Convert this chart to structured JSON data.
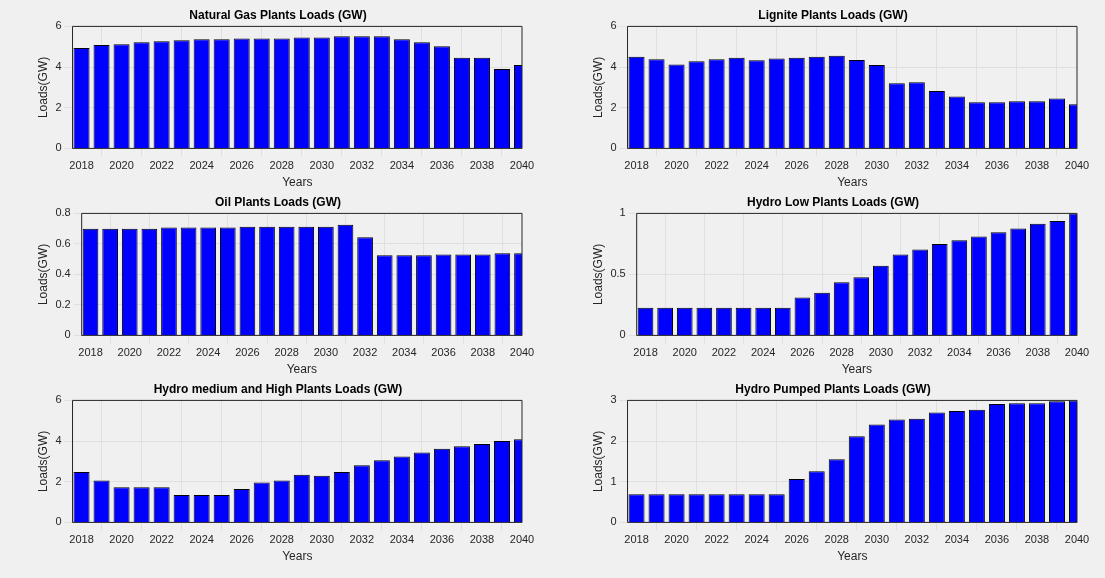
{
  "chart_data": [
    {
      "type": "bar",
      "title": "Natural Gas Plants Loads (GW)",
      "xlabel": "Years",
      "ylabel": "Loads(GW)",
      "color": "#0000ff",
      "grid": true,
      "x": [
        2018,
        2019,
        2020,
        2021,
        2022,
        2023,
        2024,
        2025,
        2026,
        2027,
        2028,
        2029,
        2030,
        2031,
        2032,
        2033,
        2034,
        2035,
        2036,
        2037,
        2038,
        2039,
        2040
      ],
      "values": [
        4.94,
        5.09,
        5.12,
        5.22,
        5.27,
        5.32,
        5.37,
        5.37,
        5.41,
        5.41,
        5.41,
        5.46,
        5.46,
        5.51,
        5.51,
        5.51,
        5.37,
        5.22,
        5.02,
        4.46,
        4.46,
        3.9,
        4.1
      ],
      "xlim": [
        2017.55,
        2040
      ],
      "xticks": [
        2018,
        2020,
        2022,
        2024,
        2026,
        2028,
        2030,
        2032,
        2034,
        2036,
        2038,
        2040
      ],
      "ylim": [
        0,
        6
      ],
      "yticks": [
        0,
        2,
        4,
        6
      ]
    },
    {
      "type": "bar",
      "title": "Lignite Plants Loads (GW)",
      "xlabel": "Years",
      "ylabel": "Loads(GW)",
      "color": "#0000ff",
      "grid": true,
      "x": [
        2018,
        2019,
        2020,
        2021,
        2022,
        2023,
        2024,
        2025,
        2026,
        2027,
        2028,
        2029,
        2030,
        2031,
        2032,
        2033,
        2034,
        2035,
        2036,
        2037,
        2038,
        2039,
        2040
      ],
      "values": [
        4.51,
        4.38,
        4.13,
        4.28,
        4.38,
        4.46,
        4.33,
        4.42,
        4.46,
        4.51,
        4.56,
        4.35,
        4.1,
        3.21,
        3.25,
        2.82,
        2.55,
        2.27,
        2.27,
        2.32,
        2.32,
        2.45,
        2.17
      ],
      "xlim": [
        2017.55,
        2040
      ],
      "xticks": [
        2018,
        2020,
        2022,
        2024,
        2026,
        2028,
        2030,
        2032,
        2034,
        2036,
        2038,
        2040
      ],
      "ylim": [
        0,
        6
      ],
      "yticks": [
        0,
        2,
        4,
        6
      ]
    },
    {
      "type": "bar",
      "title": "Oil Plants Loads (GW)",
      "xlabel": "Years",
      "ylabel": "Loads(GW)",
      "color": "#0000ff",
      "grid": true,
      "x": [
        2018,
        2019,
        2020,
        2021,
        2022,
        2023,
        2024,
        2025,
        2026,
        2027,
        2028,
        2029,
        2030,
        2031,
        2032,
        2033,
        2034,
        2035,
        2036,
        2037,
        2038,
        2039,
        2040
      ],
      "values": [
        0.7,
        0.7,
        0.7,
        0.7,
        0.707,
        0.707,
        0.707,
        0.707,
        0.712,
        0.712,
        0.712,
        0.712,
        0.712,
        0.725,
        0.644,
        0.525,
        0.525,
        0.525,
        0.531,
        0.531,
        0.531,
        0.538,
        0.538
      ],
      "xlim": [
        2017.55,
        2040
      ],
      "xticks": [
        2018,
        2020,
        2022,
        2024,
        2026,
        2028,
        2030,
        2032,
        2034,
        2036,
        2038,
        2040
      ],
      "ylim": [
        0,
        0.8
      ],
      "yticks": [
        0,
        0.2,
        0.4,
        0.6,
        0.8
      ]
    },
    {
      "type": "bar",
      "title": "Hydro Low Plants Loads (GW)",
      "xlabel": "Years",
      "ylabel": "Loads(GW)",
      "color": "#0000ff",
      "grid": true,
      "x": [
        2018,
        2019,
        2020,
        2021,
        2022,
        2023,
        2024,
        2025,
        2026,
        2027,
        2028,
        2029,
        2030,
        2031,
        2032,
        2033,
        2034,
        2035,
        2036,
        2037,
        2038,
        2039,
        2040
      ],
      "values": [
        0.226,
        0.226,
        0.226,
        0.226,
        0.226,
        0.226,
        0.226,
        0.226,
        0.31,
        0.35,
        0.435,
        0.477,
        0.57,
        0.664,
        0.705,
        0.75,
        0.78,
        0.81,
        0.846,
        0.876,
        0.915,
        0.937,
        1.0
      ],
      "xlim": [
        2017.55,
        2040
      ],
      "xticks": [
        2018,
        2020,
        2022,
        2024,
        2026,
        2028,
        2030,
        2032,
        2034,
        2036,
        2038,
        2040
      ],
      "ylim": [
        0,
        1
      ],
      "yticks": [
        0,
        0.5,
        1
      ]
    },
    {
      "type": "bar",
      "title": "Hydro medium and High Plants Loads (GW)",
      "xlabel": "Years",
      "ylabel": "Loads(GW)",
      "color": "#0000ff",
      "grid": true,
      "x": [
        2018,
        2019,
        2020,
        2021,
        2022,
        2023,
        2024,
        2025,
        2026,
        2027,
        2028,
        2029,
        2030,
        2031,
        2032,
        2033,
        2034,
        2035,
        2036,
        2037,
        2038,
        2039,
        2040
      ],
      "values": [
        2.48,
        2.06,
        1.73,
        1.73,
        1.73,
        1.35,
        1.35,
        1.35,
        1.64,
        1.96,
        2.06,
        2.34,
        2.29,
        2.48,
        2.81,
        3.06,
        3.24,
        3.44,
        3.62,
        3.75,
        3.85,
        4.0,
        4.09
      ],
      "xlim": [
        2017.55,
        2040
      ],
      "xticks": [
        2018,
        2020,
        2022,
        2024,
        2026,
        2028,
        2030,
        2032,
        2034,
        2036,
        2038,
        2040
      ],
      "ylim": [
        0,
        6
      ],
      "yticks": [
        0,
        2,
        4,
        6
      ]
    },
    {
      "type": "bar",
      "title": "Hydro Pumped Plants Loads (GW)",
      "xlabel": "Years",
      "ylabel": "Loads(GW)",
      "color": "#0000ff",
      "grid": true,
      "x": [
        2018,
        2019,
        2020,
        2021,
        2022,
        2023,
        2024,
        2025,
        2026,
        2027,
        2028,
        2029,
        2030,
        2031,
        2032,
        2033,
        2034,
        2035,
        2036,
        2037,
        2038,
        2039,
        2040
      ],
      "values": [
        0.69,
        0.69,
        0.69,
        0.69,
        0.69,
        0.69,
        0.69,
        0.69,
        1.07,
        1.26,
        1.55,
        2.12,
        2.41,
        2.53,
        2.55,
        2.7,
        2.74,
        2.77,
        2.91,
        2.93,
        2.93,
        2.98,
        3.0
      ],
      "xlim": [
        2017.55,
        2040
      ],
      "xticks": [
        2018,
        2020,
        2022,
        2024,
        2026,
        2028,
        2030,
        2032,
        2034,
        2036,
        2038,
        2040
      ],
      "ylim": [
        0,
        3
      ],
      "yticks": [
        0,
        1,
        2,
        3
      ]
    }
  ]
}
